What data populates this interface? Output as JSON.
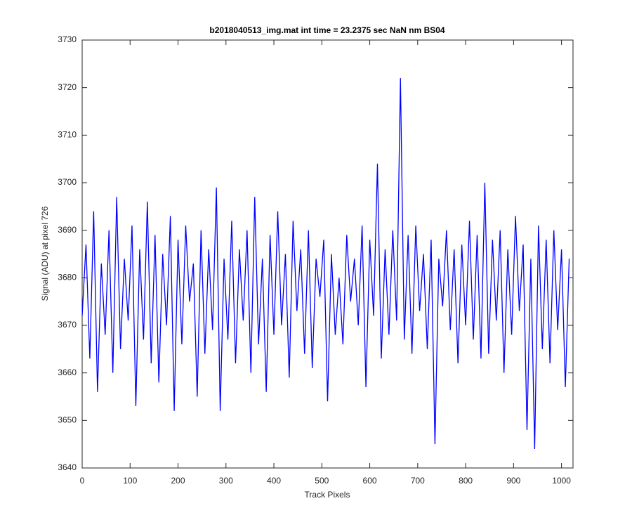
{
  "chart_data": {
    "type": "line",
    "title": "b2018040513_img.mat int time = 23.2375 sec  NaN nm BS04",
    "x_label": "Track Pixels",
    "y_label": "Signal (ADU) at pixel 726",
    "x": [
      0,
      8,
      16,
      24,
      32,
      40,
      48,
      56,
      64,
      72,
      80,
      88,
      96,
      104,
      112,
      120,
      128,
      136,
      144,
      152,
      160,
      168,
      176,
      184,
      192,
      200,
      208,
      216,
      224,
      232,
      240,
      248,
      256,
      264,
      272,
      280,
      288,
      296,
      304,
      312,
      320,
      328,
      336,
      344,
      352,
      360,
      368,
      376,
      384,
      392,
      400,
      408,
      416,
      424,
      432,
      440,
      448,
      456,
      464,
      472,
      480,
      488,
      496,
      504,
      512,
      520,
      528,
      536,
      544,
      552,
      560,
      568,
      576,
      584,
      592,
      600,
      608,
      616,
      624,
      632,
      640,
      648,
      656,
      664,
      672,
      680,
      688,
      696,
      704,
      712,
      720,
      728,
      736,
      744,
      752,
      760,
      768,
      776,
      784,
      792,
      800,
      808,
      816,
      824,
      832,
      840,
      848,
      856,
      864,
      872,
      880,
      888,
      896,
      904,
      912,
      920,
      928,
      936,
      944,
      952,
      960,
      968,
      976,
      984,
      992,
      1000,
      1008,
      1016
    ],
    "series": [
      {
        "name": "signal",
        "color": "#0000ff",
        "values": [
          3672,
          3687,
          3663,
          3694,
          3656,
          3683,
          3668,
          3690,
          3660,
          3697,
          3665,
          3684,
          3671,
          3691,
          3653,
          3686,
          3667,
          3696,
          3662,
          3689,
          3658,
          3685,
          3670,
          3693,
          3652,
          3688,
          3666,
          3691,
          3675,
          3683,
          3655,
          3690,
          3664,
          3686,
          3669,
          3699,
          3652,
          3684,
          3667,
          3692,
          3662,
          3686,
          3671,
          3690,
          3660,
          3697,
          3666,
          3684,
          3656,
          3689,
          3668,
          3694,
          3670,
          3685,
          3659,
          3692,
          3673,
          3686,
          3664,
          3690,
          3661,
          3684,
          3676,
          3688,
          3654,
          3685,
          3668,
          3680,
          3666,
          3689,
          3675,
          3684,
          3670,
          3691,
          3657,
          3688,
          3672,
          3704,
          3663,
          3686,
          3668,
          3690,
          3671,
          3722,
          3667,
          3689,
          3664,
          3691,
          3673,
          3685,
          3665,
          3688,
          3645,
          3684,
          3674,
          3690,
          3669,
          3686,
          3662,
          3687,
          3670,
          3692,
          3667,
          3689,
          3663,
          3700,
          3664,
          3688,
          3671,
          3690,
          3660,
          3686,
          3668,
          3693,
          3673,
          3687,
          3648,
          3684,
          3644,
          3691,
          3665,
          3688,
          3662,
          3690,
          3669,
          3686,
          3657,
          3684
        ]
      }
    ],
    "xlim": [
      0,
      1024
    ],
    "ylim": [
      3640,
      3730
    ],
    "xticks": [
      0,
      100,
      200,
      300,
      400,
      500,
      600,
      700,
      800,
      900,
      1000
    ],
    "yticks": [
      3640,
      3650,
      3660,
      3670,
      3680,
      3690,
      3700,
      3710,
      3720,
      3730
    ]
  }
}
